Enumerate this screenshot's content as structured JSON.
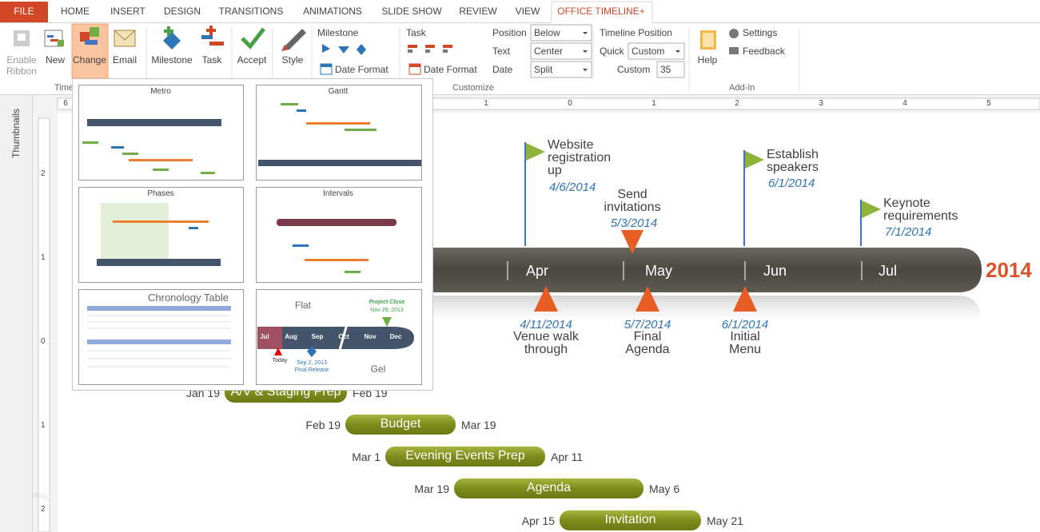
{
  "tabs": [
    "FILE",
    "HOME",
    "INSERT",
    "DESIGN",
    "TRANSITIONS",
    "ANIMATIONS",
    "SLIDE SHOW",
    "REVIEW",
    "VIEW",
    "OFFICE TIMELINE+"
  ],
  "ribbon": {
    "buttons": [
      "Enable Ribbon",
      "New",
      "Change",
      "Email",
      "Milestone",
      "Task",
      "Accept",
      "Style"
    ],
    "groups": [
      "Timeline",
      "Customize",
      "Add-In"
    ],
    "milestone": {
      "label": "Milestone",
      "date_format": "Date Format"
    },
    "task": {
      "label": "Task",
      "date_format": "Date Format"
    },
    "fields": [
      {
        "label": "Position",
        "value": "Below"
      },
      {
        "label": "Text",
        "value": "Center"
      },
      {
        "label": "Date",
        "value": "Split"
      }
    ],
    "timeline_position": {
      "title": "Timeline Position",
      "quick_label": "Quick",
      "quick_value": "Custom",
      "custom_label": "Custom",
      "custom_value": "35"
    },
    "add_in": {
      "help": "Help",
      "settings": "Settings",
      "feedback": "Feedback"
    }
  },
  "side_panel": "Thumbnails",
  "rulers": {
    "horizontal": [
      "6",
      "1",
      "0",
      "1",
      "2",
      "3",
      "4",
      "5"
    ],
    "vertical": [
      "2",
      "1",
      "0",
      "1",
      "2"
    ]
  },
  "gallery": {
    "styles": [
      "Metro",
      "Gantt",
      "Phases",
      "Intervals",
      "Chronology Table"
    ],
    "flat_gel": {
      "top": "Flat",
      "bottom": "Gel",
      "months": [
        "Jul",
        "Aug",
        "Sep",
        "Oct",
        "Nov",
        "Dec"
      ],
      "today": "Today",
      "milestone_date": "Sep 2, 2013",
      "milestone": "Final Release",
      "end_title": "Project Close",
      "end_date": "Nov 29, 2013"
    }
  },
  "slide": {
    "year": "2014",
    "months": [
      "Apr",
      "May",
      "Jun",
      "Jul"
    ],
    "milestones_above": [
      {
        "title": "Website registration up",
        "date": "4/6/2014"
      },
      {
        "title": "Send invitations",
        "date": "5/3/2014"
      },
      {
        "title": "Establish speakers",
        "date": "6/1/2014"
      },
      {
        "title": "Keynote requirements",
        "date": "7/1/2014"
      }
    ],
    "milestones_below": [
      {
        "title": "Venue walk through",
        "date": "4/11/2014"
      },
      {
        "title": "Final Agenda",
        "date": "5/7/2014"
      },
      {
        "title": "Initial Menu",
        "date": "6/1/2014"
      }
    ],
    "tasks": [
      {
        "name": "A/V & Staging Prep",
        "start": "Jan 19",
        "end": "Feb 19"
      },
      {
        "name": "Budget",
        "start": "Feb 19",
        "end": "Mar 19"
      },
      {
        "name": "Evening Events Prep",
        "start": "Mar 1",
        "end": "Apr 11"
      },
      {
        "name": "Agenda",
        "start": "Mar 19",
        "end": "May 6"
      },
      {
        "name": "Invitation",
        "start": "Apr 15",
        "end": "May 21"
      }
    ],
    "watermark": "blog"
  }
}
